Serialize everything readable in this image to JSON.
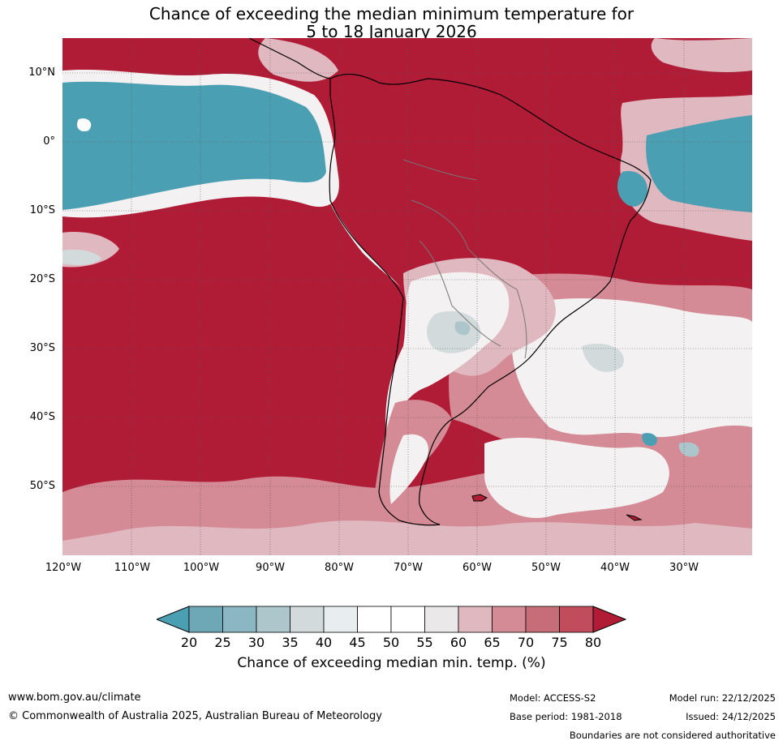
{
  "title": {
    "line1": "Chance of exceeding the median minimum temperature for",
    "line2": "5 to 18 January 2026"
  },
  "map": {
    "region": "South America and surrounding oceans",
    "lat_labels": [
      "10°N",
      "0°",
      "10°S",
      "20°S",
      "30°S",
      "40°S",
      "50°S"
    ],
    "lon_labels": [
      "120°W",
      "110°W",
      "100°W",
      "90°W",
      "80°W",
      "70°W",
      "60°W",
      "50°W",
      "40°W",
      "30°W"
    ],
    "colors": {
      "high": "#b01b36",
      "low": "#4a9fb3",
      "neutral": "#ffffff"
    }
  },
  "colorbar": {
    "ticks": [
      "20",
      "25",
      "30",
      "35",
      "40",
      "45",
      "50",
      "55",
      "60",
      "65",
      "70",
      "75",
      "80"
    ],
    "colors": [
      "#4a9fb3",
      "#6ea8b6",
      "#8bb7c4",
      "#adc6cc",
      "#d2dadc",
      "#e8eef0",
      "#ffffff",
      "#ffffff",
      "#ebe8e9",
      "#e0b8bf",
      "#d48b96",
      "#c76d7a",
      "#c04c5c",
      "#b01b36"
    ],
    "label": "Chance of exceeding median min. temp. (%)"
  },
  "footer": {
    "website": "www.bom.gov.au/climate",
    "copyright": "© Commonwealth of Australia 2025, Australian Bureau of Meteorology",
    "model": "Model: ACCESS-S2",
    "base_period": "Base period: 1981-2018",
    "model_run": "Model run: 22/12/2025",
    "issued": "Issued: 24/12/2025",
    "disclaimer": "Boundaries are not considered authoritative"
  }
}
